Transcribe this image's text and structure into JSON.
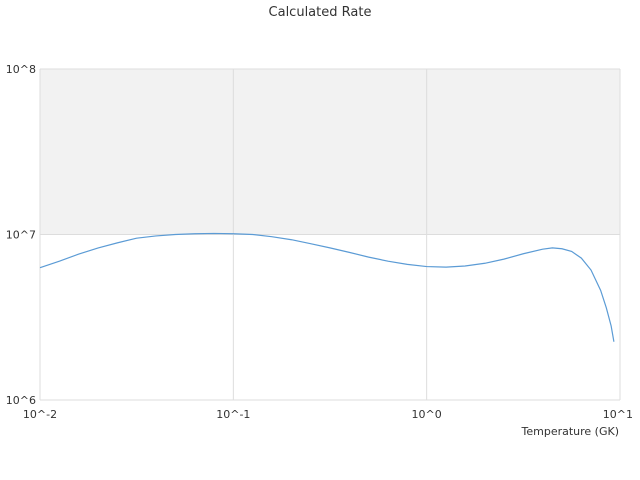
{
  "chart_data": {
    "type": "line",
    "title": "Calculated Rate",
    "xlabel": "Temperature (GK)",
    "ylabel": "",
    "x_scale": "log",
    "y_scale": "log",
    "xlim": [
      0.01,
      10
    ],
    "ylim": [
      1000000,
      100000000
    ],
    "x_tick_labels": [
      "10^-2",
      "10^-1",
      "10^0",
      "10^1"
    ],
    "y_tick_labels": [
      "10^6",
      "10^7",
      "10^8"
    ],
    "grid": true,
    "legend": "none",
    "shaded_band": {
      "y_from": 10000000,
      "y_to": 100000000,
      "color": "#f2f2f2"
    },
    "series": [
      {
        "color": "#5b9bd5",
        "x": [
          0.01,
          0.0126,
          0.0158,
          0.02,
          0.0251,
          0.0316,
          0.0398,
          0.0501,
          0.0631,
          0.0794,
          0.1,
          0.126,
          0.158,
          0.2,
          0.251,
          0.316,
          0.398,
          0.501,
          0.631,
          0.794,
          1.0,
          1.26,
          1.58,
          2.0,
          2.51,
          3.16,
          3.98,
          4.47,
          5.01,
          5.62,
          6.31,
          7.08,
          7.94,
          8.5,
          9.0,
          9.3
        ],
        "y": [
          6300000,
          6900000,
          7600000,
          8300000,
          8900000,
          9500000,
          9800000,
          10000000,
          10100000,
          10150000,
          10100000,
          10000000,
          9700000,
          9300000,
          8800000,
          8300000,
          7800000,
          7300000,
          6900000,
          6600000,
          6400000,
          6350000,
          6450000,
          6700000,
          7100000,
          7650000,
          8150000,
          8300000,
          8200000,
          7900000,
          7200000,
          6100000,
          4600000,
          3600000,
          2800000,
          2250000
        ]
      }
    ]
  }
}
